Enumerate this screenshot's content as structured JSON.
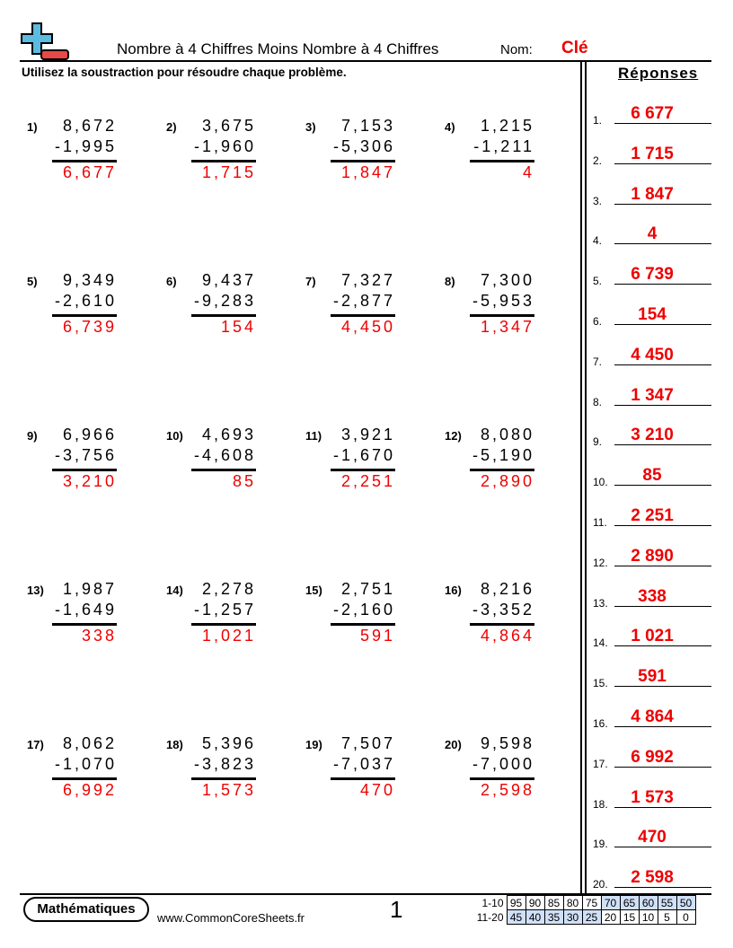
{
  "header": {
    "title": "Nombre à 4 Chiffres Moins Nombre à 4 Chiffres",
    "name_label": "Nom:",
    "name_value": "Clé",
    "instructions": "Utilisez la soustraction pour résoudre chaque problème.",
    "logo": "plus-minus-logo"
  },
  "answers_heading": "Réponses",
  "problems": [
    {
      "n": "1)",
      "a": "8,672",
      "b": "-1,995",
      "ans": "6,677"
    },
    {
      "n": "2)",
      "a": "3,675",
      "b": "-1,960",
      "ans": "1,715"
    },
    {
      "n": "3)",
      "a": "7,153",
      "b": "-5,306",
      "ans": "1,847"
    },
    {
      "n": "4)",
      "a": "1,215",
      "b": "-1,211",
      "ans": "4"
    },
    {
      "n": "5)",
      "a": "9,349",
      "b": "-2,610",
      "ans": "6,739"
    },
    {
      "n": "6)",
      "a": "9,437",
      "b": "-9,283",
      "ans": "154"
    },
    {
      "n": "7)",
      "a": "7,327",
      "b": "-2,877",
      "ans": "4,450"
    },
    {
      "n": "8)",
      "a": "7,300",
      "b": "-5,953",
      "ans": "1,347"
    },
    {
      "n": "9)",
      "a": "6,966",
      "b": "-3,756",
      "ans": "3,210"
    },
    {
      "n": "10)",
      "a": "4,693",
      "b": "-4,608",
      "ans": "85"
    },
    {
      "n": "11)",
      "a": "3,921",
      "b": "-1,670",
      "ans": "2,251"
    },
    {
      "n": "12)",
      "a": "8,080",
      "b": "-5,190",
      "ans": "2,890"
    },
    {
      "n": "13)",
      "a": "1,987",
      "b": "-1,649",
      "ans": "338"
    },
    {
      "n": "14)",
      "a": "2,278",
      "b": "-1,257",
      "ans": "1,021"
    },
    {
      "n": "15)",
      "a": "2,751",
      "b": "-2,160",
      "ans": "591"
    },
    {
      "n": "16)",
      "a": "8,216",
      "b": "-3,352",
      "ans": "4,864"
    },
    {
      "n": "17)",
      "a": "8,062",
      "b": "-1,070",
      "ans": "6,992"
    },
    {
      "n": "18)",
      "a": "5,396",
      "b": "-3,823",
      "ans": "1,573"
    },
    {
      "n": "19)",
      "a": "7,507",
      "b": "-7,037",
      "ans": "470"
    },
    {
      "n": "20)",
      "a": "9,598",
      "b": "-7,000",
      "ans": "2,598"
    }
  ],
  "answer_key": [
    {
      "label": "1.",
      "value": "6 677"
    },
    {
      "label": "2.",
      "value": "1 715"
    },
    {
      "label": "3.",
      "value": "1 847"
    },
    {
      "label": "4.",
      "value": "4"
    },
    {
      "label": "5.",
      "value": "6 739"
    },
    {
      "label": "6.",
      "value": "154"
    },
    {
      "label": "7.",
      "value": "4 450"
    },
    {
      "label": "8.",
      "value": "1 347"
    },
    {
      "label": "9.",
      "value": "3 210"
    },
    {
      "label": "10.",
      "value": "85"
    },
    {
      "label": "11.",
      "value": "2 251"
    },
    {
      "label": "12.",
      "value": "2 890"
    },
    {
      "label": "13.",
      "value": "338"
    },
    {
      "label": "14.",
      "value": "1 021"
    },
    {
      "label": "15.",
      "value": "591"
    },
    {
      "label": "16.",
      "value": "4 864"
    },
    {
      "label": "17.",
      "value": "6 992"
    },
    {
      "label": "18.",
      "value": "1 573"
    },
    {
      "label": "19.",
      "value": "470"
    },
    {
      "label": "20.",
      "value": "2 598"
    }
  ],
  "footer": {
    "brand": "Mathématiques",
    "url": "www.CommonCoreSheets.fr",
    "page": "1",
    "score_rows": [
      {
        "label": "1-10",
        "values": [
          "95",
          "90",
          "85",
          "80",
          "75",
          "70",
          "65",
          "60",
          "55",
          "50"
        ],
        "highlight_from": 5
      },
      {
        "label": "11-20",
        "values": [
          "45",
          "40",
          "35",
          "30",
          "25",
          "20",
          "15",
          "10",
          "5",
          "0"
        ],
        "highlight_to": 4
      }
    ]
  },
  "colors": {
    "answer": "#ee0000",
    "logo_plus": "#5bbbe0",
    "logo_minus": "#e84848",
    "score_highlight": "#cfe0f7"
  }
}
